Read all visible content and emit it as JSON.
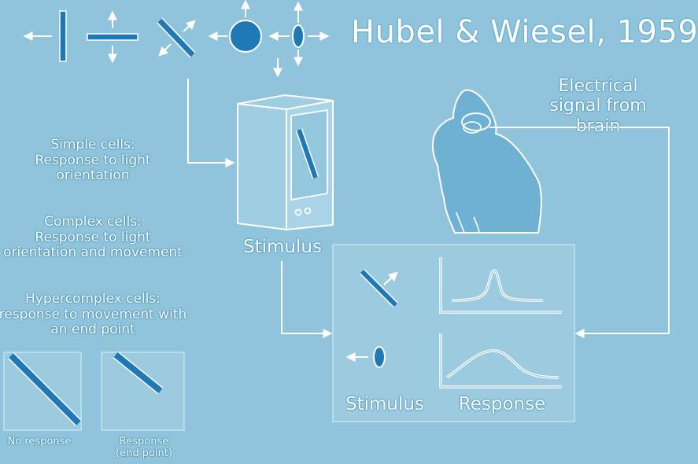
{
  "title": "Hubel & Wiesel, 1959",
  "signal_label": [
    "Electrical",
    "signal from",
    "brain"
  ],
  "stimulus_label": "Stimulus",
  "cell_types": [
    {
      "name": "Simple cells:",
      "lines": [
        "Response to light",
        "orientation"
      ]
    },
    {
      "name": "Complex cells:",
      "lines": [
        "Response to light",
        "orientation and movement"
      ]
    },
    {
      "name": "Hypercomplex cells:",
      "lines": [
        "response to movement with",
        "an end point"
      ]
    }
  ],
  "examples": [
    {
      "label_lines": [
        "No response"
      ]
    },
    {
      "label_lines": [
        "Response",
        "(end point)"
      ]
    }
  ],
  "panel": {
    "stimulus_label": "Stimulus",
    "response_label": "Response"
  },
  "colors": {
    "background": "#8fc4dc",
    "accent_blue": "#1f79b4",
    "line_white": "#ffffff",
    "cat_fill": "#6fb1d2"
  }
}
